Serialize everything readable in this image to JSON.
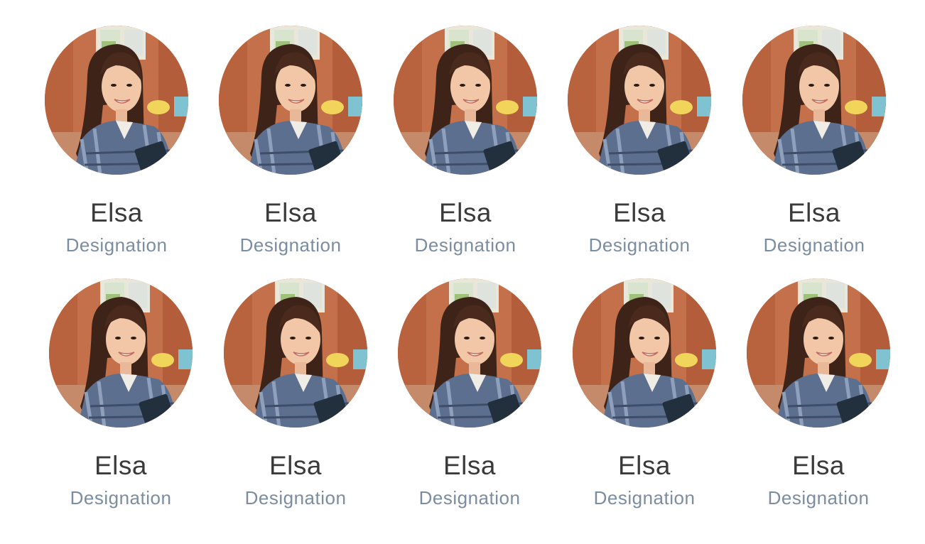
{
  "team": {
    "members": [
      {
        "name": "Elsa",
        "designation": "Designation"
      },
      {
        "name": "Elsa",
        "designation": "Designation"
      },
      {
        "name": "Elsa",
        "designation": "Designation"
      },
      {
        "name": "Elsa",
        "designation": "Designation"
      },
      {
        "name": "Elsa",
        "designation": "Designation"
      },
      {
        "name": "Elsa",
        "designation": "Designation"
      },
      {
        "name": "Elsa",
        "designation": "Designation"
      },
      {
        "name": "Elsa",
        "designation": "Designation"
      },
      {
        "name": "Elsa",
        "designation": "Designation"
      },
      {
        "name": "Elsa",
        "designation": "Designation"
      }
    ]
  },
  "colors": {
    "name_text": "#3a3a3a",
    "designation_text": "#7b8da0",
    "background": "#ffffff"
  }
}
